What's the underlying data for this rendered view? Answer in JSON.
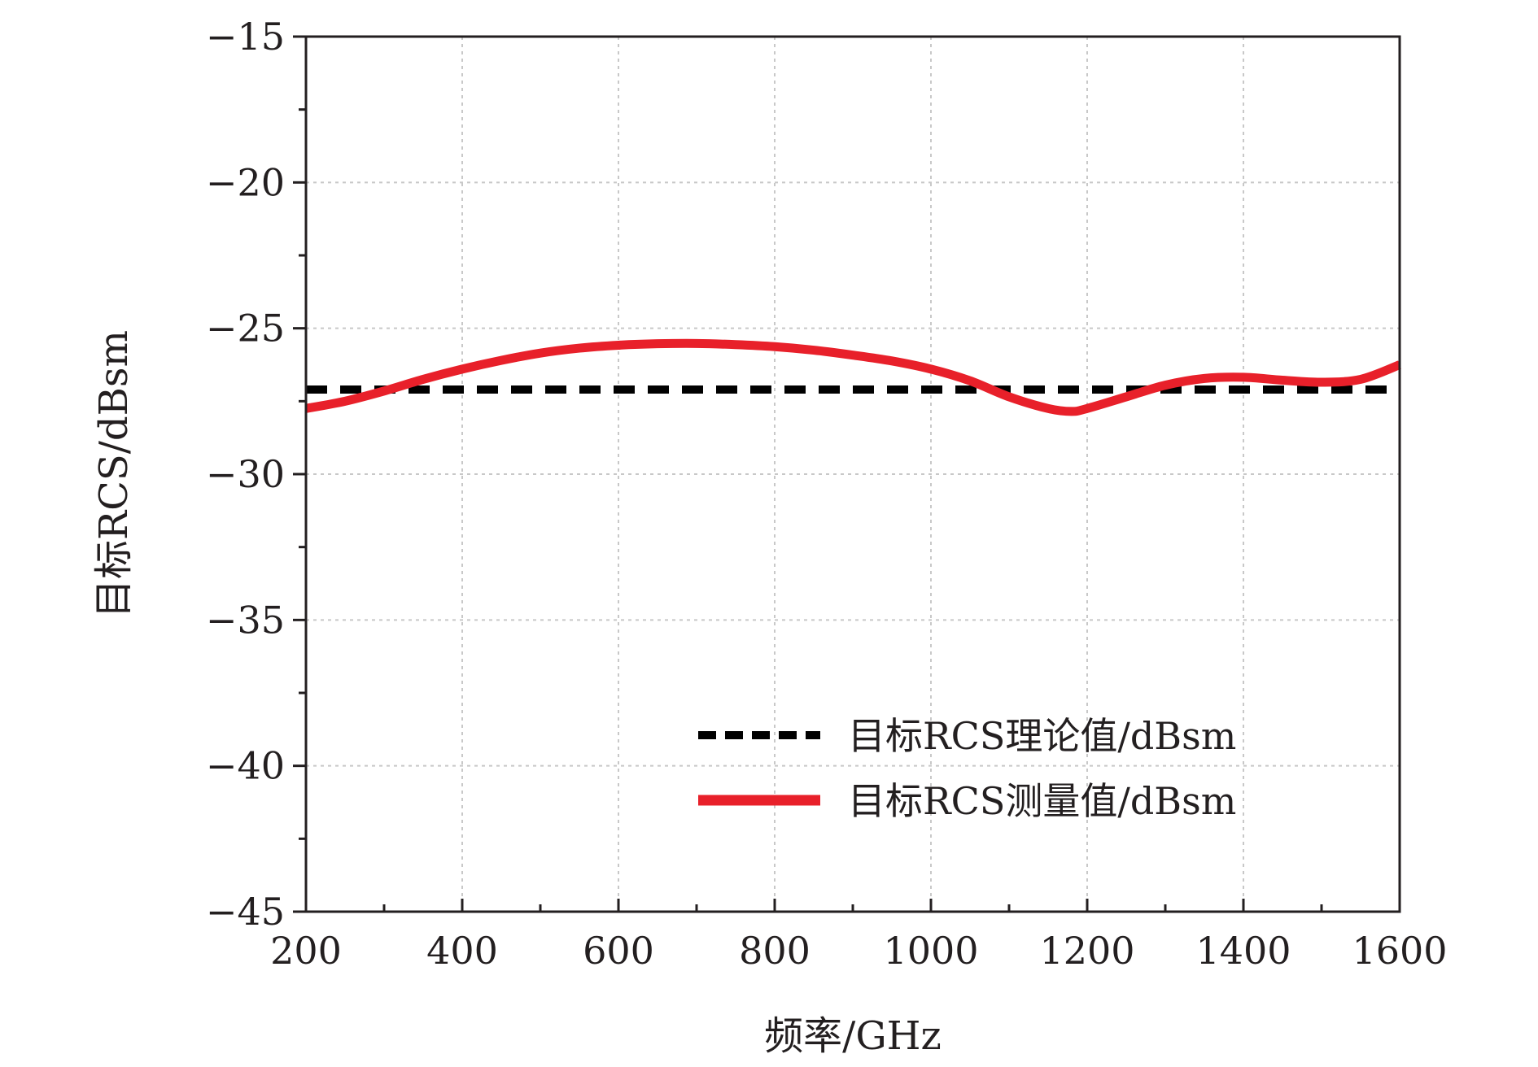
{
  "chart_data": {
    "type": "line",
    "xlabel": "频率/GHz",
    "ylabel": "目标RCS/dBsm",
    "xlim": [
      200,
      1600
    ],
    "ylim": [
      -45,
      -15
    ],
    "xticks": [
      200,
      400,
      600,
      800,
      1000,
      1200,
      1400,
      1600
    ],
    "yticks": [
      -15,
      -20,
      -25,
      -30,
      -35,
      -40,
      -45
    ],
    "xtick_labels": [
      "200",
      "400",
      "600",
      "800",
      "1000",
      "1200",
      "1400",
      "1600"
    ],
    "ytick_labels": [
      "−15",
      "−20",
      "−25",
      "−30",
      "−35",
      "−40",
      "−45"
    ],
    "grid": true,
    "legend_position": "lower-right",
    "series": [
      {
        "name": "目标RCS理论值/dBsm",
        "style": "dashed",
        "color": "#000000",
        "x": [
          200,
          1600
        ],
        "y": [
          -27.1,
          -27.1
        ]
      },
      {
        "name": "目标RCS测量值/dBsm",
        "style": "solid",
        "color": "#e8202a",
        "x": [
          200,
          250,
          300,
          350,
          400,
          450,
          500,
          550,
          600,
          650,
          700,
          750,
          800,
          850,
          900,
          950,
          1000,
          1050,
          1100,
          1150,
          1180,
          1200,
          1250,
          1300,
          1350,
          1400,
          1450,
          1500,
          1550,
          1600
        ],
        "y": [
          -27.75,
          -27.5,
          -27.15,
          -26.75,
          -26.4,
          -26.1,
          -25.85,
          -25.68,
          -25.58,
          -25.53,
          -25.52,
          -25.56,
          -25.63,
          -25.75,
          -25.92,
          -26.12,
          -26.4,
          -26.8,
          -27.35,
          -27.75,
          -27.85,
          -27.75,
          -27.35,
          -26.95,
          -26.72,
          -26.68,
          -26.78,
          -26.85,
          -26.75,
          -26.25
        ]
      }
    ]
  }
}
